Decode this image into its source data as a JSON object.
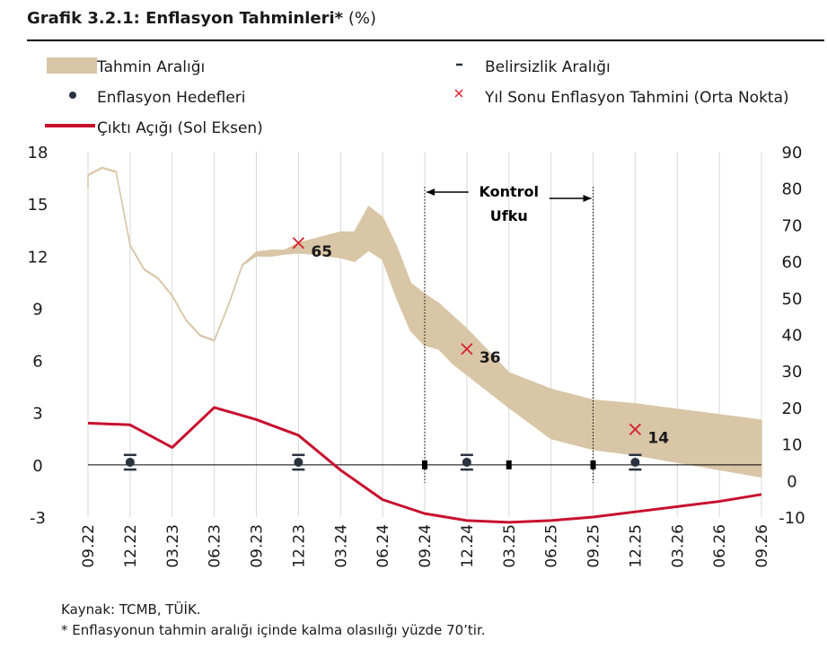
{
  "header": {
    "title": "Grafik 3.2.1: Enflasyon Tahminleri*",
    "unit": "(%)"
  },
  "footer": {
    "source": "Kaynak: TCMB, TÜİK.",
    "note": "* Enflasyonun tahmin aralığı içinde kalma olasılığı yüzde 70’tir."
  },
  "colors": {
    "band": "#d9c6a7",
    "output_gap": "#c8102e",
    "target_dot": "#27333f",
    "forecast_marker": "#d62230",
    "text": "#1a1a1a"
  },
  "chart_data": {
    "type": "line",
    "categories": [
      "09.22",
      "12.22",
      "03.23",
      "06.23",
      "09.23",
      "12.23",
      "03.24",
      "06.24",
      "09.24",
      "12.24",
      "03.25",
      "06.25",
      "09.25",
      "12.25",
      "03.26",
      "06.26",
      "09.26"
    ],
    "x_monthly_start": "08.22",
    "x_monthly_end": "09.26",
    "ylim_left": [
      -3,
      18
    ],
    "yticks_left": [
      -3,
      0,
      3,
      6,
      9,
      12,
      15,
      18
    ],
    "ylim_right": [
      -10,
      90
    ],
    "yticks_right": [
      -10,
      0,
      10,
      20,
      30,
      40,
      50,
      60,
      70,
      80,
      90
    ],
    "grid": "vertical",
    "legend_position": "top",
    "legend": [
      {
        "key": "band",
        "label": "Tahmin Aralığı",
        "icon": "band-swatch"
      },
      {
        "key": "uncertainty",
        "label": "Belirsizlik Aralığı",
        "icon": "dash-icon"
      },
      {
        "key": "target",
        "label": "Enflasyon Hedefleri",
        "icon": "dot-icon"
      },
      {
        "key": "forecast",
        "label": "Yıl Sonu Enflasyon Tahmini (Orta Nokta)",
        "icon": "x-mark-icon"
      },
      {
        "key": "gap",
        "label": "Çıktı Açığı (Sol Eksen)",
        "icon": "line-swatch"
      }
    ],
    "series": [
      {
        "name": "Tahmin Aralığı",
        "axis": "right",
        "x": [
          "08.22",
          "09.22",
          "10.22",
          "11.22",
          "12.22",
          "01.23",
          "02.23",
          "03.23",
          "04.23",
          "05.23",
          "06.23",
          "07.23",
          "08.23",
          "09.23",
          "10.23",
          "11.23",
          "12.23",
          "01.24",
          "02.24",
          "03.24",
          "04.24",
          "05.24",
          "06.24",
          "07.24",
          "08.24",
          "09.24",
          "10.24",
          "11.24",
          "12.24",
          "01.25",
          "02.25",
          "03.25",
          "06.25",
          "09.25",
          "12.25",
          "03.26",
          "06.26",
          "09.26"
        ],
        "lower": [
          80.2,
          83.5,
          85.5,
          84.4,
          64.3,
          57.7,
          55.2,
          50.5,
          43.7,
          39.6,
          38.2,
          47.8,
          58.9,
          61.5,
          61.4,
          62.0,
          62.3,
          62.0,
          61.5,
          61.0,
          60.0,
          63.0,
          60.5,
          50.0,
          41.0,
          37.0,
          36.0,
          32.0,
          29.0,
          26.0,
          23.0,
          20.0,
          11.5,
          8.5,
          7.0,
          5.0,
          3.0,
          1.0
        ],
        "upper": [
          80.4,
          83.7,
          85.7,
          84.6,
          64.5,
          57.9,
          55.4,
          50.7,
          43.9,
          39.8,
          38.4,
          48.0,
          59.1,
          62.5,
          63.0,
          63.0,
          65.0,
          66.0,
          67.0,
          68.0,
          68.0,
          75.0,
          72.0,
          64.0,
          54.0,
          51.0,
          48.5,
          45.0,
          41.5,
          37.5,
          33.5,
          29.5,
          25.0,
          22.0,
          21.0,
          19.5,
          18.0,
          16.5
        ]
      },
      {
        "name": "Çıktı Açığı (Sol Eksen)",
        "axis": "left",
        "x": [
          "08.22",
          "12.22",
          "03.23",
          "06.23",
          "09.23",
          "12.23",
          "03.24",
          "06.24",
          "09.24",
          "12.24",
          "03.25",
          "06.25",
          "09.25",
          "12.25",
          "03.26",
          "06.26",
          "09.26"
        ],
        "values": [
          2.4,
          2.3,
          1.0,
          3.3,
          2.6,
          1.7,
          -0.3,
          -2.0,
          -2.8,
          -3.2,
          -3.3,
          -3.2,
          -3.0,
          -2.7,
          -2.4,
          -2.1,
          -1.7
        ]
      },
      {
        "name": "Enflasyon Hedefleri",
        "axis": "right",
        "x": [
          "12.22",
          "12.23",
          "12.24",
          "12.25"
        ],
        "values": [
          5,
          5,
          5,
          5
        ],
        "uncertainty_range": [
          7,
          3
        ]
      },
      {
        "name": "Yıl Sonu Enflasyon Tahmini (Orta Nokta)",
        "axis": "right",
        "x": [
          "12.23",
          "12.24",
          "12.25"
        ],
        "values": [
          65,
          36,
          14
        ],
        "labels": [
          "65",
          "36",
          "14"
        ]
      }
    ],
    "annotations": [
      {
        "text_line1": "Kontrol",
        "text_line2": "Ufku",
        "from": "09.24",
        "to": "09.25"
      }
    ],
    "baseline_markers": [
      "09.24",
      "03.25",
      "09.25"
    ]
  }
}
